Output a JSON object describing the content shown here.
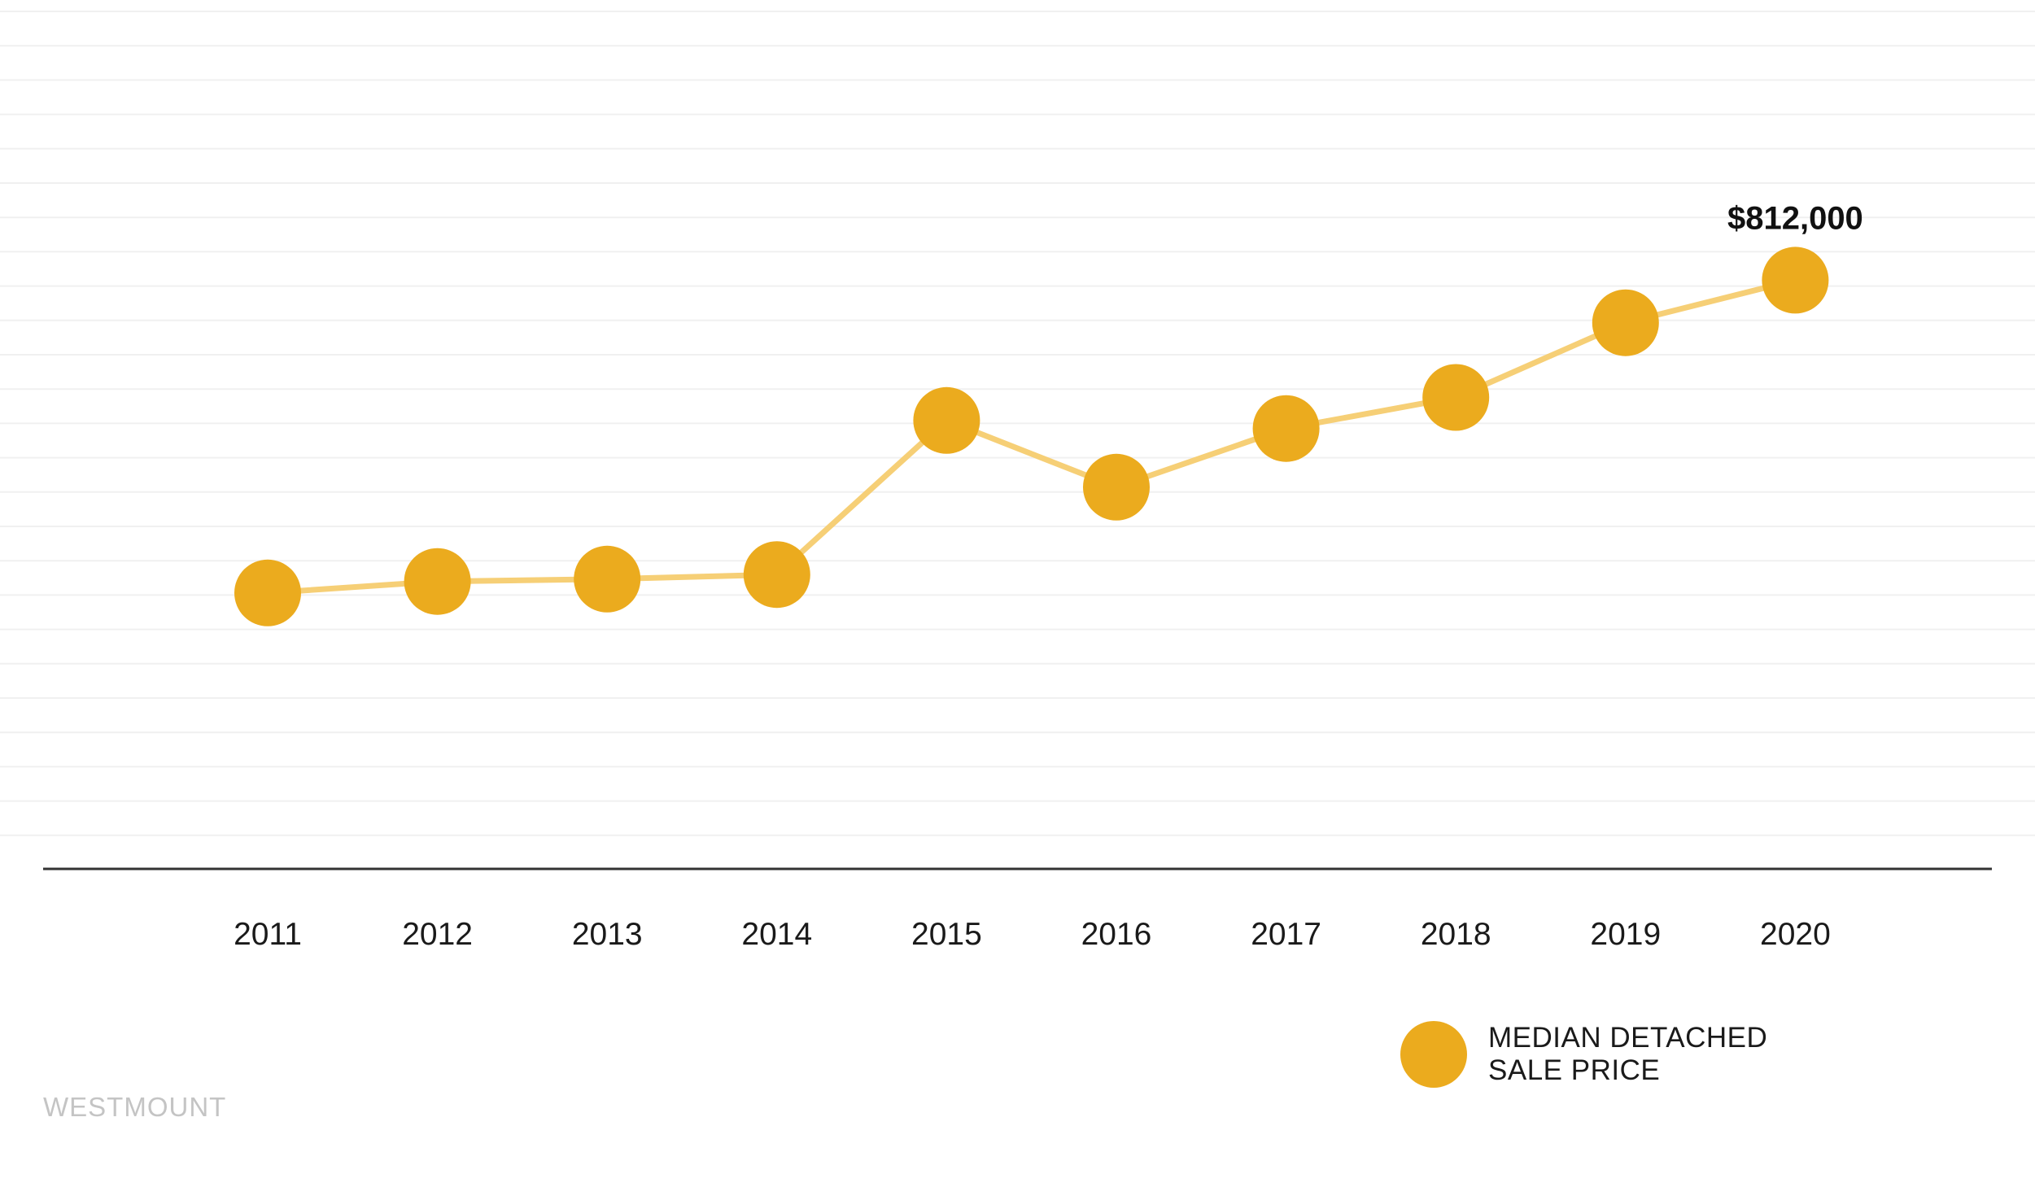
{
  "chart_data": {
    "type": "line",
    "x": [
      "2011",
      "2012",
      "2013",
      "2014",
      "2015",
      "2016",
      "2017",
      "2018",
      "2019",
      "2020"
    ],
    "series": [
      {
        "name": "MEDIAN DETACHED SALE PRICE",
        "values": [
          540000,
          550000,
          552000,
          556000,
          690000,
          632000,
          683000,
          710000,
          775000,
          812000
        ]
      }
    ],
    "data_labels": [
      {
        "index": 9,
        "text": "$812,000"
      }
    ],
    "ylim": [
      300000,
      1050000
    ],
    "grid": true,
    "legend": {
      "position": "bottom-right",
      "lines": [
        "MEDIAN DETACHED",
        "SALE PRICE"
      ]
    },
    "colors": {
      "marker": "#EBAB1E",
      "line": "#F6CF76",
      "gridline": "#F0F0F0",
      "axis": "#333333"
    }
  },
  "watermark": "WESTMOUNT"
}
